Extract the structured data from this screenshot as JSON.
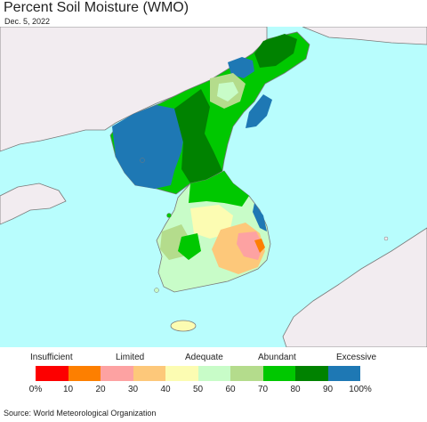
{
  "title": "Percent Soil Moisture (WMO)",
  "date": "Dec. 5, 2022",
  "legend": {
    "categories": [
      "Insufficient",
      "Limited",
      "Adequate",
      "Abundant",
      "Excessive"
    ],
    "ticks": [
      "0%",
      "10",
      "20",
      "30",
      "40",
      "50",
      "60",
      "70",
      "80",
      "90",
      "100%"
    ],
    "colors": [
      "#fd0000",
      "#fd7f00",
      "#fda2a2",
      "#fdc87a",
      "#fcfcb2",
      "#c8fcc8",
      "#b4dc8c",
      "#00c800",
      "#008200",
      "#1e78b4"
    ]
  },
  "source": "Source: World Meteorological Organization",
  "map_colors": {
    "sea": "#b8fdfd",
    "other_land": "#f2ecf0",
    "border": "#7a7a7a"
  }
}
